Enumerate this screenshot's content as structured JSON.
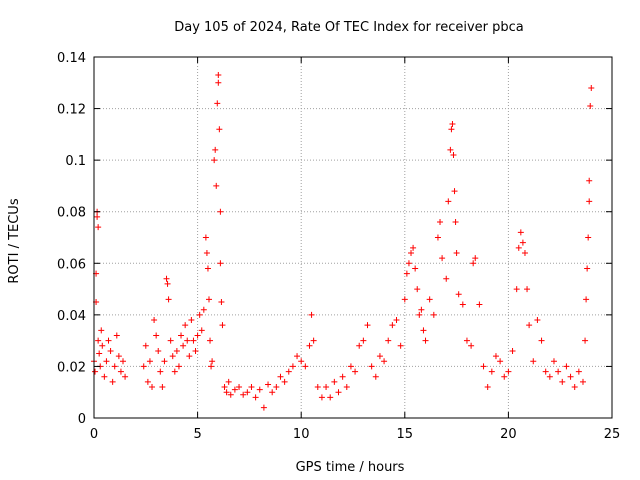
{
  "chart_data": {
    "type": "scatter",
    "title": "Day 105 of 2024, Rate Of TEC Index for receiver pbca",
    "xlabel": "GPS time / hours",
    "ylabel": "ROTI / TECUs",
    "xlim": [
      0,
      25
    ],
    "ylim": [
      0,
      0.14
    ],
    "grid": true,
    "marker": "+",
    "color": "#ff0000",
    "x_ticks": [
      "0",
      "5",
      "10",
      "15",
      "20",
      "25"
    ],
    "x_tick_values": [
      0,
      5,
      10,
      15,
      20,
      25
    ],
    "y_ticks": [
      "0",
      "0.02",
      "0.04",
      "0.06",
      "0.08",
      "0.1",
      "0.12",
      "0.14"
    ],
    "y_tick_values": [
      0,
      0.02,
      0.04,
      0.06,
      0.08,
      0.1,
      0.12,
      0.14
    ],
    "series": [
      {
        "name": "ROTI",
        "points": [
          [
            0.0,
            0.022
          ],
          [
            0.05,
            0.018
          ],
          [
            0.1,
            0.045
          ],
          [
            0.1,
            0.056
          ],
          [
            0.15,
            0.078
          ],
          [
            0.15,
            0.08
          ],
          [
            0.2,
            0.074
          ],
          [
            0.2,
            0.03
          ],
          [
            0.25,
            0.025
          ],
          [
            0.3,
            0.02
          ],
          [
            0.35,
            0.034
          ],
          [
            0.4,
            0.028
          ],
          [
            0.5,
            0.016
          ],
          [
            0.6,
            0.022
          ],
          [
            0.7,
            0.03
          ],
          [
            0.8,
            0.026
          ],
          [
            0.9,
            0.014
          ],
          [
            1.0,
            0.02
          ],
          [
            1.1,
            0.032
          ],
          [
            1.2,
            0.024
          ],
          [
            1.3,
            0.018
          ],
          [
            1.4,
            0.022
          ],
          [
            1.5,
            0.016
          ],
          [
            2.4,
            0.02
          ],
          [
            2.5,
            0.028
          ],
          [
            2.6,
            0.014
          ],
          [
            2.7,
            0.022
          ],
          [
            2.8,
            0.012
          ],
          [
            2.9,
            0.038
          ],
          [
            3.0,
            0.032
          ],
          [
            3.1,
            0.026
          ],
          [
            3.2,
            0.018
          ],
          [
            3.3,
            0.012
          ],
          [
            3.4,
            0.022
          ],
          [
            3.5,
            0.054
          ],
          [
            3.55,
            0.052
          ],
          [
            3.6,
            0.046
          ],
          [
            3.7,
            0.03
          ],
          [
            3.8,
            0.024
          ],
          [
            3.9,
            0.018
          ],
          [
            4.0,
            0.026
          ],
          [
            4.1,
            0.02
          ],
          [
            4.2,
            0.032
          ],
          [
            4.3,
            0.028
          ],
          [
            4.4,
            0.036
          ],
          [
            4.5,
            0.03
          ],
          [
            4.6,
            0.024
          ],
          [
            4.7,
            0.038
          ],
          [
            4.8,
            0.03
          ],
          [
            4.9,
            0.026
          ],
          [
            5.0,
            0.032
          ],
          [
            5.1,
            0.04
          ],
          [
            5.2,
            0.034
          ],
          [
            5.3,
            0.042
          ],
          [
            5.4,
            0.07
          ],
          [
            5.45,
            0.064
          ],
          [
            5.5,
            0.058
          ],
          [
            5.55,
            0.046
          ],
          [
            5.6,
            0.03
          ],
          [
            5.65,
            0.02
          ],
          [
            5.7,
            0.022
          ],
          [
            5.8,
            0.1
          ],
          [
            5.85,
            0.104
          ],
          [
            5.9,
            0.09
          ],
          [
            5.95,
            0.122
          ],
          [
            6.0,
            0.133
          ],
          [
            6.0,
            0.13
          ],
          [
            6.05,
            0.112
          ],
          [
            6.1,
            0.08
          ],
          [
            6.1,
            0.06
          ],
          [
            6.15,
            0.045
          ],
          [
            6.2,
            0.036
          ],
          [
            6.3,
            0.012
          ],
          [
            6.4,
            0.01
          ],
          [
            6.5,
            0.014
          ],
          [
            6.6,
            0.009
          ],
          [
            6.8,
            0.011
          ],
          [
            7.0,
            0.012
          ],
          [
            7.2,
            0.009
          ],
          [
            7.4,
            0.01
          ],
          [
            7.6,
            0.012
          ],
          [
            7.8,
            0.008
          ],
          [
            8.0,
            0.011
          ],
          [
            8.2,
            0.004
          ],
          [
            8.4,
            0.013
          ],
          [
            8.6,
            0.01
          ],
          [
            8.8,
            0.012
          ],
          [
            9.0,
            0.016
          ],
          [
            9.2,
            0.014
          ],
          [
            9.4,
            0.018
          ],
          [
            9.6,
            0.02
          ],
          [
            9.8,
            0.024
          ],
          [
            10.0,
            0.022
          ],
          [
            10.2,
            0.02
          ],
          [
            10.4,
            0.028
          ],
          [
            10.5,
            0.04
          ],
          [
            10.6,
            0.03
          ],
          [
            10.8,
            0.012
          ],
          [
            11.0,
            0.008
          ],
          [
            11.2,
            0.012
          ],
          [
            11.4,
            0.008
          ],
          [
            11.6,
            0.014
          ],
          [
            11.8,
            0.01
          ],
          [
            12.0,
            0.016
          ],
          [
            12.2,
            0.012
          ],
          [
            12.4,
            0.02
          ],
          [
            12.6,
            0.018
          ],
          [
            12.8,
            0.028
          ],
          [
            13.0,
            0.03
          ],
          [
            13.2,
            0.036
          ],
          [
            13.4,
            0.02
          ],
          [
            13.6,
            0.016
          ],
          [
            13.8,
            0.024
          ],
          [
            14.0,
            0.022
          ],
          [
            14.2,
            0.03
          ],
          [
            14.4,
            0.036
          ],
          [
            14.6,
            0.038
          ],
          [
            14.8,
            0.028
          ],
          [
            15.0,
            0.046
          ],
          [
            15.1,
            0.056
          ],
          [
            15.2,
            0.06
          ],
          [
            15.3,
            0.064
          ],
          [
            15.4,
            0.066
          ],
          [
            15.5,
            0.058
          ],
          [
            15.6,
            0.05
          ],
          [
            15.7,
            0.04
          ],
          [
            15.8,
            0.042
          ],
          [
            15.9,
            0.034
          ],
          [
            16.0,
            0.03
          ],
          [
            16.2,
            0.046
          ],
          [
            16.4,
            0.04
          ],
          [
            16.6,
            0.07
          ],
          [
            16.7,
            0.076
          ],
          [
            16.8,
            0.062
          ],
          [
            17.0,
            0.054
          ],
          [
            17.1,
            0.084
          ],
          [
            17.2,
            0.104
          ],
          [
            17.25,
            0.112
          ],
          [
            17.3,
            0.114
          ],
          [
            17.35,
            0.102
          ],
          [
            17.4,
            0.088
          ],
          [
            17.45,
            0.076
          ],
          [
            17.5,
            0.064
          ],
          [
            17.6,
            0.048
          ],
          [
            17.8,
            0.044
          ],
          [
            18.0,
            0.03
          ],
          [
            18.2,
            0.028
          ],
          [
            18.3,
            0.06
          ],
          [
            18.4,
            0.062
          ],
          [
            18.6,
            0.044
          ],
          [
            18.8,
            0.02
          ],
          [
            19.0,
            0.012
          ],
          [
            19.2,
            0.018
          ],
          [
            19.4,
            0.024
          ],
          [
            19.6,
            0.022
          ],
          [
            19.8,
            0.016
          ],
          [
            20.0,
            0.018
          ],
          [
            20.2,
            0.026
          ],
          [
            20.4,
            0.05
          ],
          [
            20.5,
            0.066
          ],
          [
            20.6,
            0.072
          ],
          [
            20.7,
            0.068
          ],
          [
            20.8,
            0.064
          ],
          [
            20.9,
            0.05
          ],
          [
            21.0,
            0.036
          ],
          [
            21.2,
            0.022
          ],
          [
            21.4,
            0.038
          ],
          [
            21.6,
            0.03
          ],
          [
            21.8,
            0.018
          ],
          [
            22.0,
            0.016
          ],
          [
            22.2,
            0.022
          ],
          [
            22.4,
            0.018
          ],
          [
            22.6,
            0.014
          ],
          [
            22.8,
            0.02
          ],
          [
            23.0,
            0.016
          ],
          [
            23.2,
            0.012
          ],
          [
            23.4,
            0.018
          ],
          [
            23.6,
            0.014
          ],
          [
            23.7,
            0.03
          ],
          [
            23.75,
            0.046
          ],
          [
            23.8,
            0.058
          ],
          [
            23.85,
            0.07
          ],
          [
            23.9,
            0.084
          ],
          [
            23.9,
            0.092
          ],
          [
            23.95,
            0.121
          ],
          [
            24.0,
            0.128
          ]
        ]
      }
    ]
  }
}
